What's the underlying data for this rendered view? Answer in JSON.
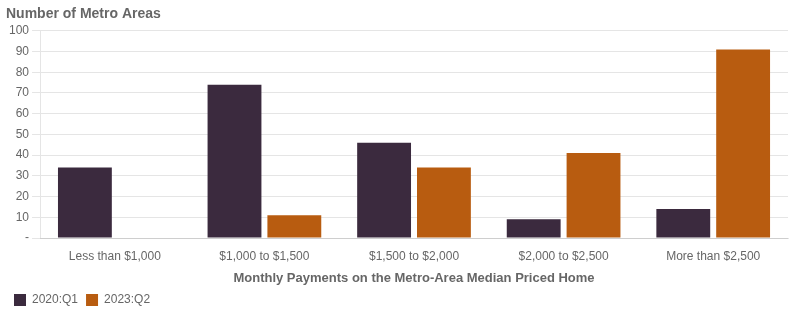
{
  "chart_data": {
    "type": "bar",
    "title": "Number of Metro Areas",
    "x_label": "Monthly Payments on the Metro-Area Median Priced Home",
    "categories": [
      "Less than $1,000",
      "$1,000 to $1,500",
      "$1,500 to $2,000",
      "$2,000 to $2,500",
      "More than $2,500"
    ],
    "series": [
      {
        "name": "2020:Q1",
        "color": "#3b2a3e",
        "values": [
          34,
          74,
          46,
          9,
          14
        ]
      },
      {
        "name": "2023:Q2",
        "color": "#b85c10",
        "values": [
          0,
          11,
          34,
          41,
          91
        ]
      }
    ],
    "ylim": [
      0,
      100
    ],
    "yticks": [
      {
        "value": 0,
        "label": "-"
      },
      10,
      20,
      30,
      40,
      50,
      60,
      70,
      80,
      90,
      100
    ],
    "grid": true,
    "legend": "lower left"
  }
}
